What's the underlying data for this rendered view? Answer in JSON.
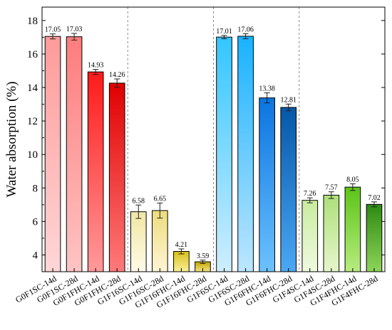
{
  "chart_data": {
    "type": "bar",
    "ylabel": "Water absorption (%)",
    "ylim": [
      3,
      18.8
    ],
    "yticks": [
      4,
      6,
      8,
      10,
      12,
      14,
      16,
      18
    ],
    "grid": false,
    "group_separators": "dashed vertical lines between groups of four bars",
    "categories": [
      "G0F1SC-14d",
      "G0F1SC-28d",
      "G0F1FHC-14d",
      "G0F1FHC-28d",
      "G1F16SC-14d",
      "G1F16SC-28d",
      "G1F16FHC-14d",
      "G1F16FHC-28d",
      "G1F6SC-14d",
      "G1F6SC-28d",
      "G1F6FHC-14d",
      "G1F6FHC-28d",
      "G1F4SC-14d",
      "G1F4SC-28d",
      "G1F4FHC-14d",
      "G1F4FHC-28d"
    ],
    "values": [
      17.05,
      17.03,
      14.93,
      14.26,
      6.58,
      6.65,
      4.21,
      3.59,
      17.01,
      17.06,
      13.38,
      12.81,
      7.26,
      7.57,
      8.05,
      7.02
    ],
    "value_labels": [
      "17.05",
      "17.03",
      "14.93",
      "14.26",
      "6.58",
      "6.65",
      "4.21",
      "3.59",
      "17.01",
      "17.06",
      "13.38",
      "12.81",
      "7.26",
      "7.57",
      "8.05",
      "7.02"
    ],
    "errors": [
      0.15,
      0.2,
      0.15,
      0.25,
      0.4,
      0.45,
      0.15,
      0.1,
      0.1,
      0.15,
      0.3,
      0.2,
      0.15,
      0.2,
      0.2,
      0.15
    ],
    "bar_gradients": [
      [
        "#ffd6d6",
        "#ff9a9a"
      ],
      [
        "#ffc4c4",
        "#ff7c7c"
      ],
      [
        "#ff9a9a",
        "#ff1a1a"
      ],
      [
        "#ff7a7a",
        "#e00000"
      ],
      [
        "#fffbe8",
        "#f2e7a3"
      ],
      [
        "#fff6d6",
        "#ecdc7c"
      ],
      [
        "#f8ef9a",
        "#d8bf1a"
      ],
      [
        "#f3e580",
        "#c4a400"
      ],
      [
        "#cfeeff",
        "#33c6ff"
      ],
      [
        "#bde6ff",
        "#19b2ff"
      ],
      [
        "#6cc2ff",
        "#0a74e0"
      ],
      [
        "#4aa8f5",
        "#0657a8"
      ],
      [
        "#f1fadf",
        "#c8eba0"
      ],
      [
        "#e6f6cc",
        "#aedf7a"
      ],
      [
        "#b8ec80",
        "#5cc417"
      ],
      [
        "#8ed45a",
        "#2e8a12"
      ]
    ]
  }
}
